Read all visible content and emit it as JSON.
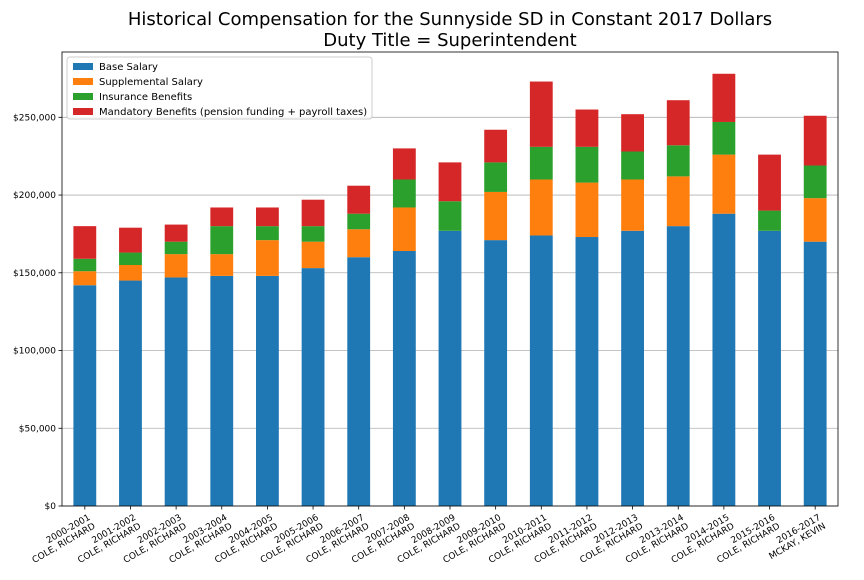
{
  "chart_data": {
    "type": "bar",
    "stacked": true,
    "title": [
      "Historical Compensation for the Sunnyside SD in Constant 2017 Dollars",
      "Duty Title = Superintendent"
    ],
    "xlabel": "",
    "ylabel": "",
    "ylim": [
      0,
      292000
    ],
    "grid": "horizontal",
    "legend_position": "top-left",
    "yticks": [
      0,
      50000,
      100000,
      150000,
      200000,
      250000
    ],
    "ytick_labels": [
      "$0",
      "$50,000",
      "$100,000",
      "$150,000",
      "$200,000",
      "$250,000"
    ],
    "categories": [
      [
        "2000-2001",
        "COLE, RICHARD"
      ],
      [
        "2001-2002",
        "COLE, RICHARD"
      ],
      [
        "2002-2003",
        "COLE, RICHARD"
      ],
      [
        "2003-2004",
        "COLE, RICHARD"
      ],
      [
        "2004-2005",
        "COLE, RICHARD"
      ],
      [
        "2005-2006",
        "COLE, RICHARD"
      ],
      [
        "2006-2007",
        "COLE, RICHARD"
      ],
      [
        "2007-2008",
        "COLE, RICHARD"
      ],
      [
        "2008-2009",
        "COLE, RICHARD"
      ],
      [
        "2009-2010",
        "COLE, RICHARD"
      ],
      [
        "2010-2011",
        "COLE, RICHARD"
      ],
      [
        "2011-2012",
        "COLE, RICHARD"
      ],
      [
        "2012-2013",
        "COLE, RICHARD"
      ],
      [
        "2013-2014",
        "COLE, RICHARD"
      ],
      [
        "2014-2015",
        "COLE, RICHARD"
      ],
      [
        "2015-2016",
        "COLE, RICHARD"
      ],
      [
        "2016-2017",
        "MCKAY, KEVIN"
      ]
    ],
    "series": [
      {
        "name": "Base Salary",
        "color": "#1f77b4",
        "values": [
          142000,
          145000,
          147000,
          148000,
          148000,
          153000,
          160000,
          164000,
          177000,
          171000,
          174000,
          173000,
          177000,
          180000,
          188000,
          177000,
          170000
        ]
      },
      {
        "name": "Supplemental Salary",
        "color": "#ff7f0e",
        "values": [
          9000,
          10000,
          15000,
          14000,
          23000,
          17000,
          18000,
          28000,
          0,
          31000,
          36000,
          35000,
          33000,
          32000,
          38000,
          0,
          28000
        ]
      },
      {
        "name": "Insurance Benefits",
        "color": "#2ca02c",
        "values": [
          8000,
          8000,
          8000,
          18000,
          9000,
          10000,
          10000,
          18000,
          19000,
          19000,
          21000,
          23000,
          18000,
          20000,
          21000,
          13000,
          21000
        ]
      },
      {
        "name": "Mandatory Benefits (pension funding + payroll taxes)",
        "color": "#d62728",
        "values": [
          21000,
          16000,
          11000,
          12000,
          12000,
          17000,
          18000,
          20000,
          25000,
          21000,
          42000,
          24000,
          24000,
          29000,
          31000,
          36000,
          32000
        ]
      }
    ]
  }
}
